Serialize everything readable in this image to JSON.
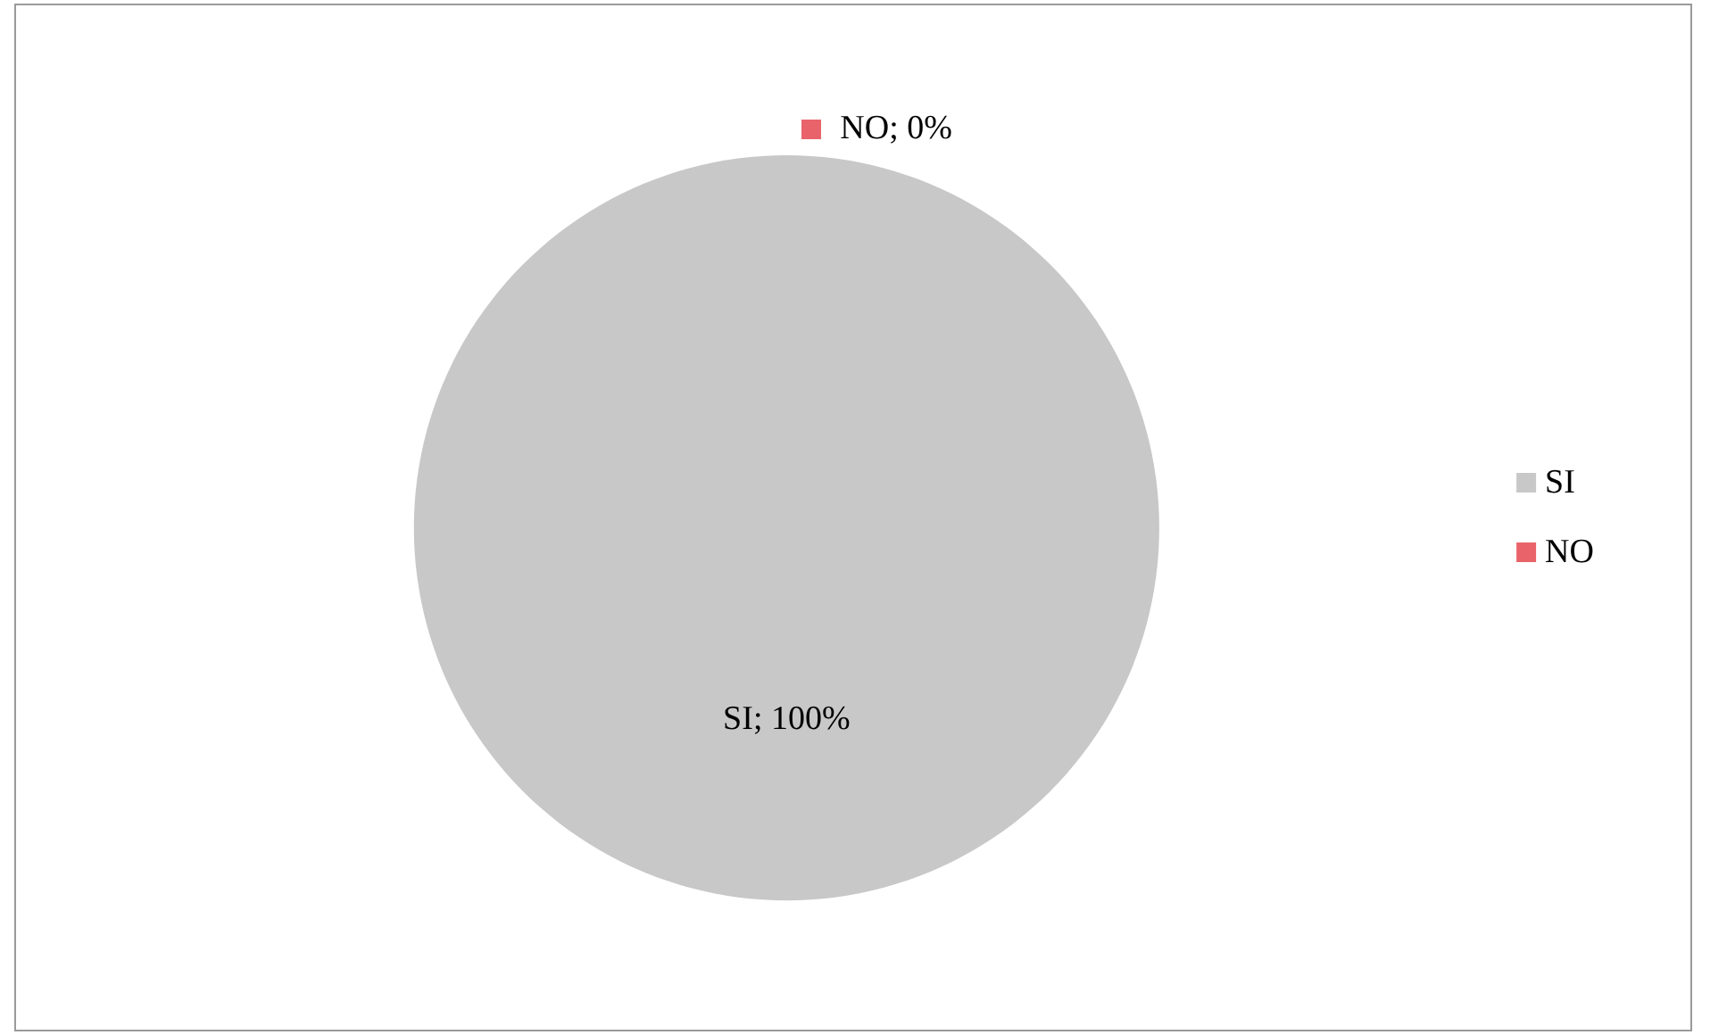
{
  "chart_data": {
    "type": "pie",
    "categories": [
      "SI",
      "NO"
    ],
    "values": [
      100,
      0
    ],
    "colors": [
      "#c8c8c8",
      "#e8646a"
    ],
    "value_labels": [
      "SI; 100%",
      "NO; 0%"
    ],
    "legend": "right"
  }
}
